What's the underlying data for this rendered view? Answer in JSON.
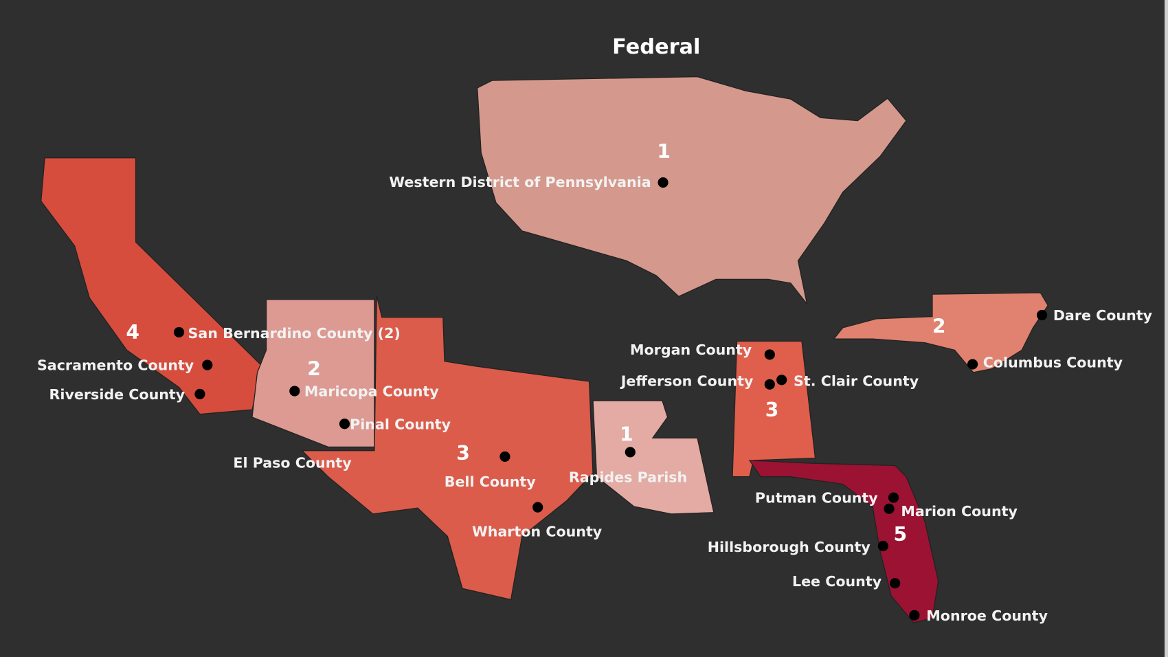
{
  "title": "Federal",
  "colors": {
    "background": "#2f2f2f",
    "federal": "#d4998c",
    "california": "#d64d3e",
    "arizona": "#dc9a92",
    "texas": "#db5c4b",
    "louisiana": "#e3aba3",
    "alabama": "#df5f4c",
    "florida": "#9c1233",
    "north_carolina": "#e0826f"
  },
  "regions": {
    "federal": {
      "count": "1",
      "locations": [
        "Western District of Pennsylvania"
      ]
    },
    "california": {
      "count": "4",
      "locations": [
        "San Bernardino County (2)",
        "Sacramento County",
        "Riverside County"
      ]
    },
    "arizona": {
      "count": "2",
      "locations": [
        "Maricopa County",
        "Pinal County"
      ]
    },
    "texas": {
      "count": "3",
      "locations": [
        "El Paso County",
        "Bell County",
        "Wharton County"
      ]
    },
    "louisiana": {
      "count": "1",
      "locations": [
        "Rapides Parish"
      ]
    },
    "alabama": {
      "count": "3",
      "locations": [
        "Morgan County",
        "Jefferson County",
        "St. Clair County"
      ]
    },
    "florida": {
      "count": "5",
      "locations": [
        "Putman County",
        "Marion County",
        "Hillsborough County",
        "Lee County",
        "Monroe County"
      ]
    },
    "north_carolina": {
      "count": "2",
      "locations": [
        "Dare County",
        "Columbus County"
      ]
    }
  }
}
